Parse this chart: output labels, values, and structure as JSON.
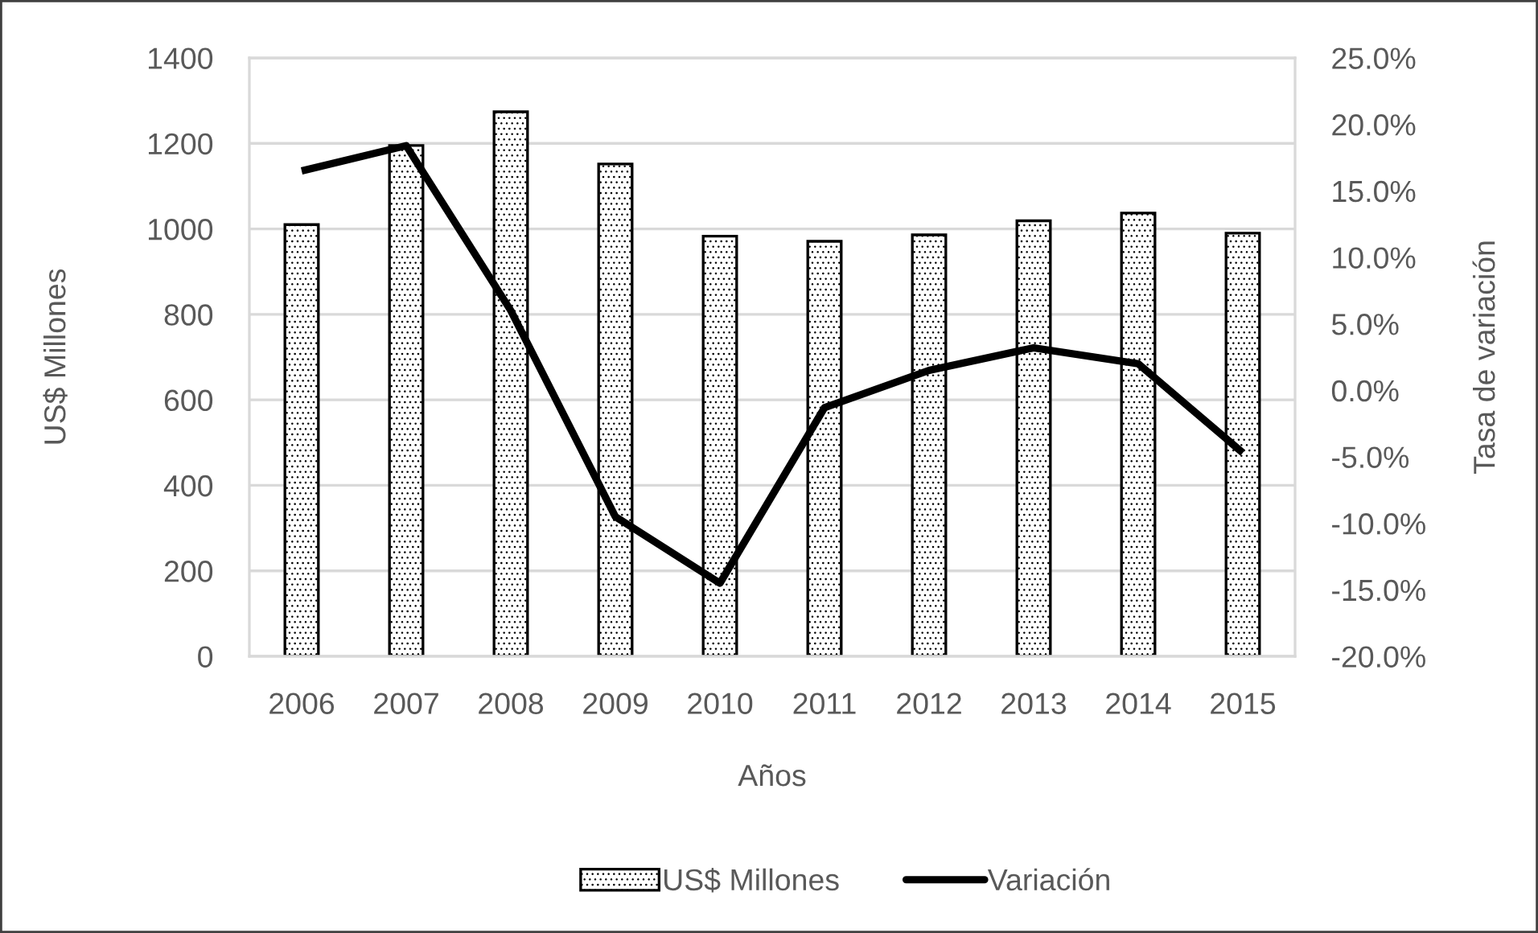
{
  "chart_data": {
    "type": "bar",
    "xlabel": "Años",
    "ylabel": "US$ Millones",
    "y2label": "Tasa de variación",
    "categories": [
      "2006",
      "2007",
      "2008",
      "2009",
      "2010",
      "2011",
      "2012",
      "2013",
      "2014",
      "2015"
    ],
    "series": [
      {
        "name": "US$ Millones",
        "color": "#000000",
        "values": [
          1010,
          1195,
          1274,
          1152,
          983,
          971,
          986,
          1019,
          1037,
          990
        ]
      },
      {
        "name": "Variación",
        "type": "line",
        "axis": "y2",
        "color": "#000000",
        "values": [
          16.5,
          18.4,
          6.0,
          -9.5,
          -14.5,
          -1.3,
          1.5,
          3.2,
          2.0,
          -4.7
        ]
      }
    ],
    "ylim": [
      0,
      1400
    ],
    "yticks": [
      0,
      200,
      400,
      600,
      800,
      1000,
      1200,
      1400
    ],
    "y2lim": [
      -20,
      25
    ],
    "y2ticks": [
      {
        "value": -20,
        "label": "-20.0%"
      },
      {
        "value": -15,
        "label": "-15.0%"
      },
      {
        "value": -10,
        "label": "-10.0%"
      },
      {
        "value": -5,
        "label": "-5.0%"
      },
      {
        "value": 0,
        "label": "0.0%"
      },
      {
        "value": 5,
        "label": "5.0%"
      },
      {
        "value": 10,
        "label": "10.0%"
      },
      {
        "value": 15,
        "label": "15.0%"
      },
      {
        "value": 20,
        "label": "20.0%"
      },
      {
        "value": 25,
        "label": "25.0%"
      }
    ],
    "grid": "y",
    "legend": "bottom",
    "line_style": "solid"
  }
}
